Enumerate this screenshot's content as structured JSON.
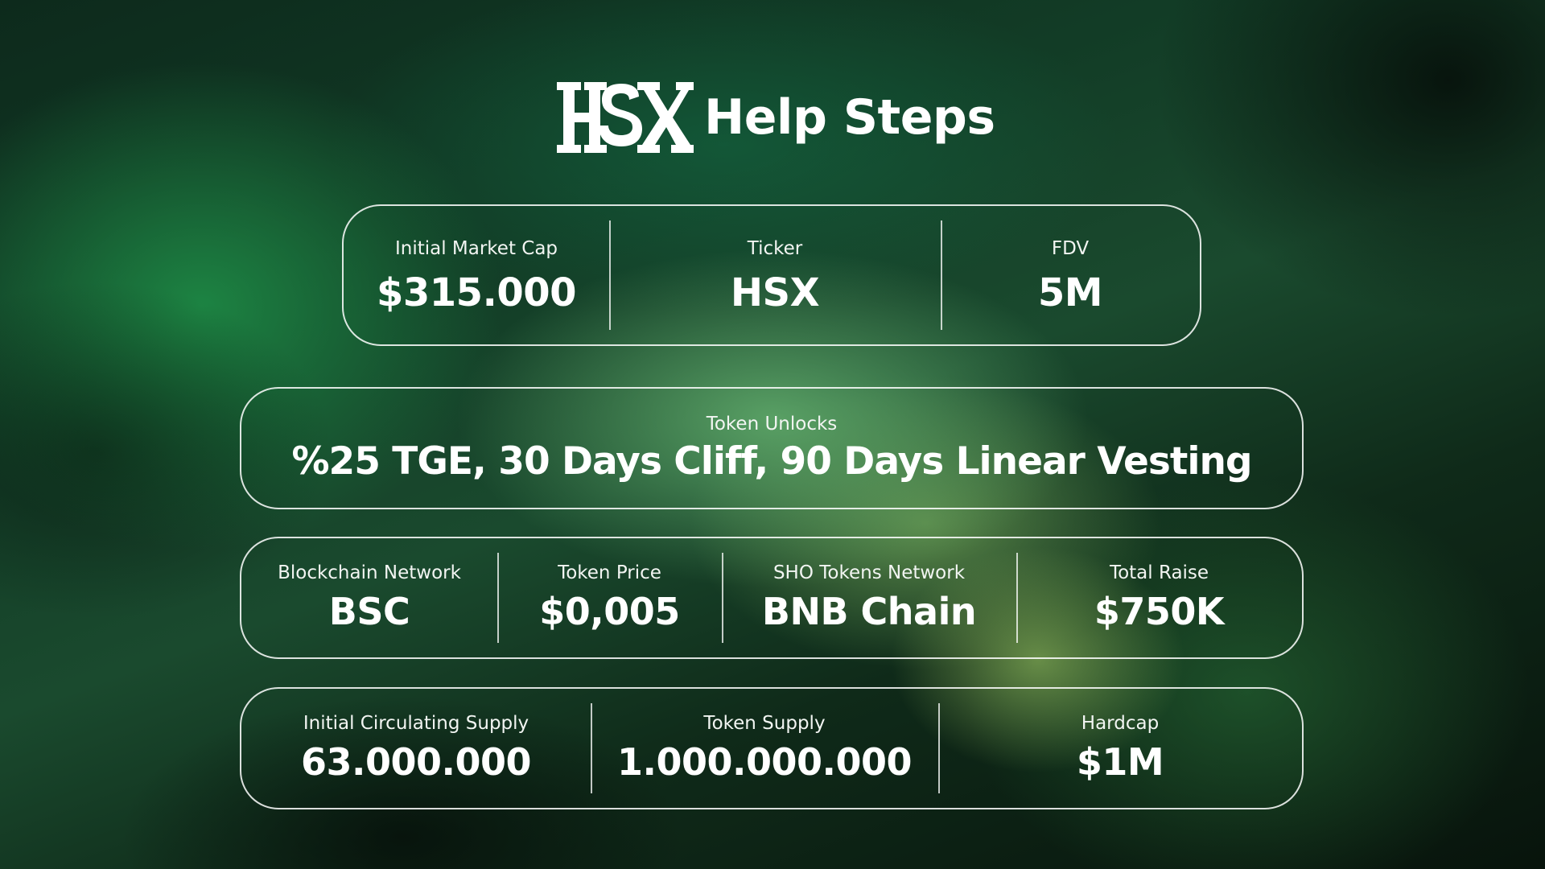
{
  "header": {
    "logo_text": "HSX",
    "title": "Help Steps"
  },
  "row1": [
    {
      "label": "Initial Market Cap",
      "value": "$315.000"
    },
    {
      "label": "Ticker",
      "value": "HSX"
    },
    {
      "label": "FDV",
      "value": "5M"
    }
  ],
  "row2": {
    "label": "Token Unlocks",
    "value": "%25 TGE, 30 Days Cliff, 90 Days Linear Vesting"
  },
  "row3": [
    {
      "label": "Blockchain Network",
      "value": "BSC"
    },
    {
      "label": "Token Price",
      "value": "$0,005"
    },
    {
      "label": "SHO Tokens Network",
      "value": "BNB Chain"
    },
    {
      "label": "Total Raise",
      "value": "$750K"
    }
  ],
  "row4": [
    {
      "label": "Initial Circulating Supply",
      "value": "63.000.000"
    },
    {
      "label": "Token Supply",
      "value": "1.000.000.000"
    },
    {
      "label": "Hardcap",
      "value": "$1M"
    }
  ],
  "colors": {
    "text": "#ffffff",
    "border": "#ffffff",
    "background_dark": "#0a1a0f",
    "background_green": "#1e8c46"
  }
}
